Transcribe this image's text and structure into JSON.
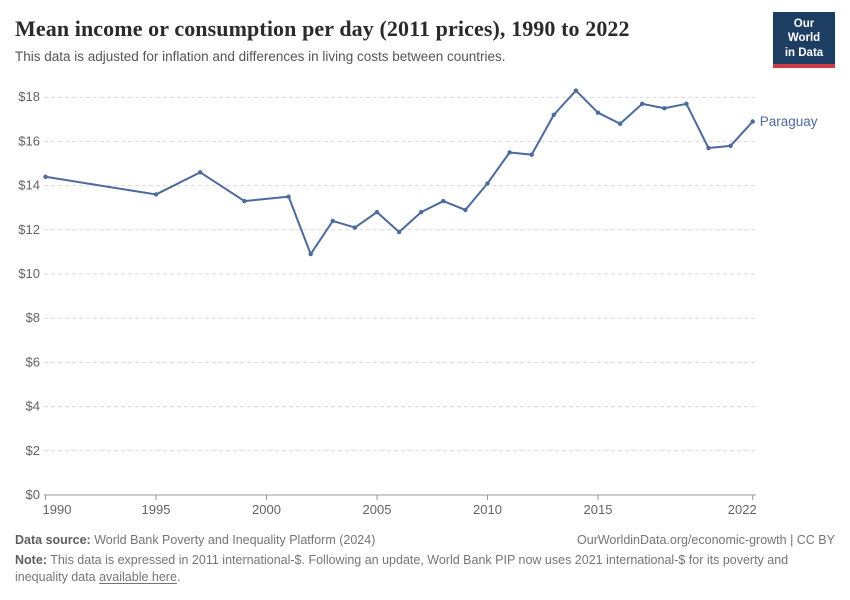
{
  "header": {
    "title": "Mean income or consumption per day (2011 prices), 1990 to 2022",
    "subtitle": "This data is adjusted for inflation and differences in living costs between countries."
  },
  "logo": {
    "line1": "Our World",
    "line2": "in Data",
    "bg_color": "#1d3d63",
    "accent_color": "#cb3c48"
  },
  "chart_data": {
    "type": "line",
    "title": "Mean income or consumption per day (2011 prices), 1990 to 2022",
    "subtitle": "This data is adjusted for inflation and differences in living costs between countries.",
    "x": [
      1990,
      1995,
      1997,
      1999,
      2001,
      2002,
      2003,
      2004,
      2005,
      2006,
      2007,
      2008,
      2009,
      2010,
      2011,
      2012,
      2013,
      2014,
      2015,
      2016,
      2017,
      2018,
      2019,
      2020,
      2021,
      2022
    ],
    "series": [
      {
        "name": "Paraguay",
        "color": "#4C6A9C",
        "values": [
          14.4,
          13.6,
          14.6,
          13.3,
          13.5,
          10.9,
          12.4,
          12.1,
          12.8,
          11.9,
          12.8,
          13.3,
          12.9,
          14.1,
          15.5,
          15.4,
          17.2,
          18.3,
          17.3,
          16.8,
          17.7,
          17.5,
          17.7,
          15.7,
          15.8,
          16.9
        ]
      }
    ],
    "xlim": [
      1990,
      2022
    ],
    "ylim": [
      0,
      18
    ],
    "x_tick_values": [
      1990,
      1995,
      2000,
      2005,
      2010,
      2015,
      2022
    ],
    "x_tick_labels": [
      "1990",
      "1995",
      "2000",
      "2005",
      "2010",
      "2015",
      "2022"
    ],
    "y_tick_values": [
      0,
      2,
      4,
      6,
      8,
      10,
      12,
      14,
      16,
      18
    ],
    "y_tick_labels": [
      "$0",
      "$2",
      "$4",
      "$6",
      "$8",
      "$10",
      "$12",
      "$14",
      "$16",
      "$18"
    ],
    "grid": "horizontal-dashed",
    "legend": "line-end-label"
  },
  "footer": {
    "datasource_label": "Data source:",
    "datasource_text": " World Bank Poverty and Inequality Platform (2024)",
    "link_text": "OurWorldinData.org/economic-growth | CC BY",
    "note_label": "Note:",
    "note_before_link": " This data is expressed in 2011 international-$. Following an update, World Bank PIP now uses 2021 international-$ for its poverty and inequality data ",
    "note_link_text": "available here",
    "note_after_link": "."
  },
  "colors": {
    "line": "#4C6A9C",
    "grid": "#d9d9d9",
    "axis": "#999999",
    "tick_text": "#646464",
    "title": "#2b2b2b",
    "subtitle": "#555555",
    "footer": "#757575"
  }
}
